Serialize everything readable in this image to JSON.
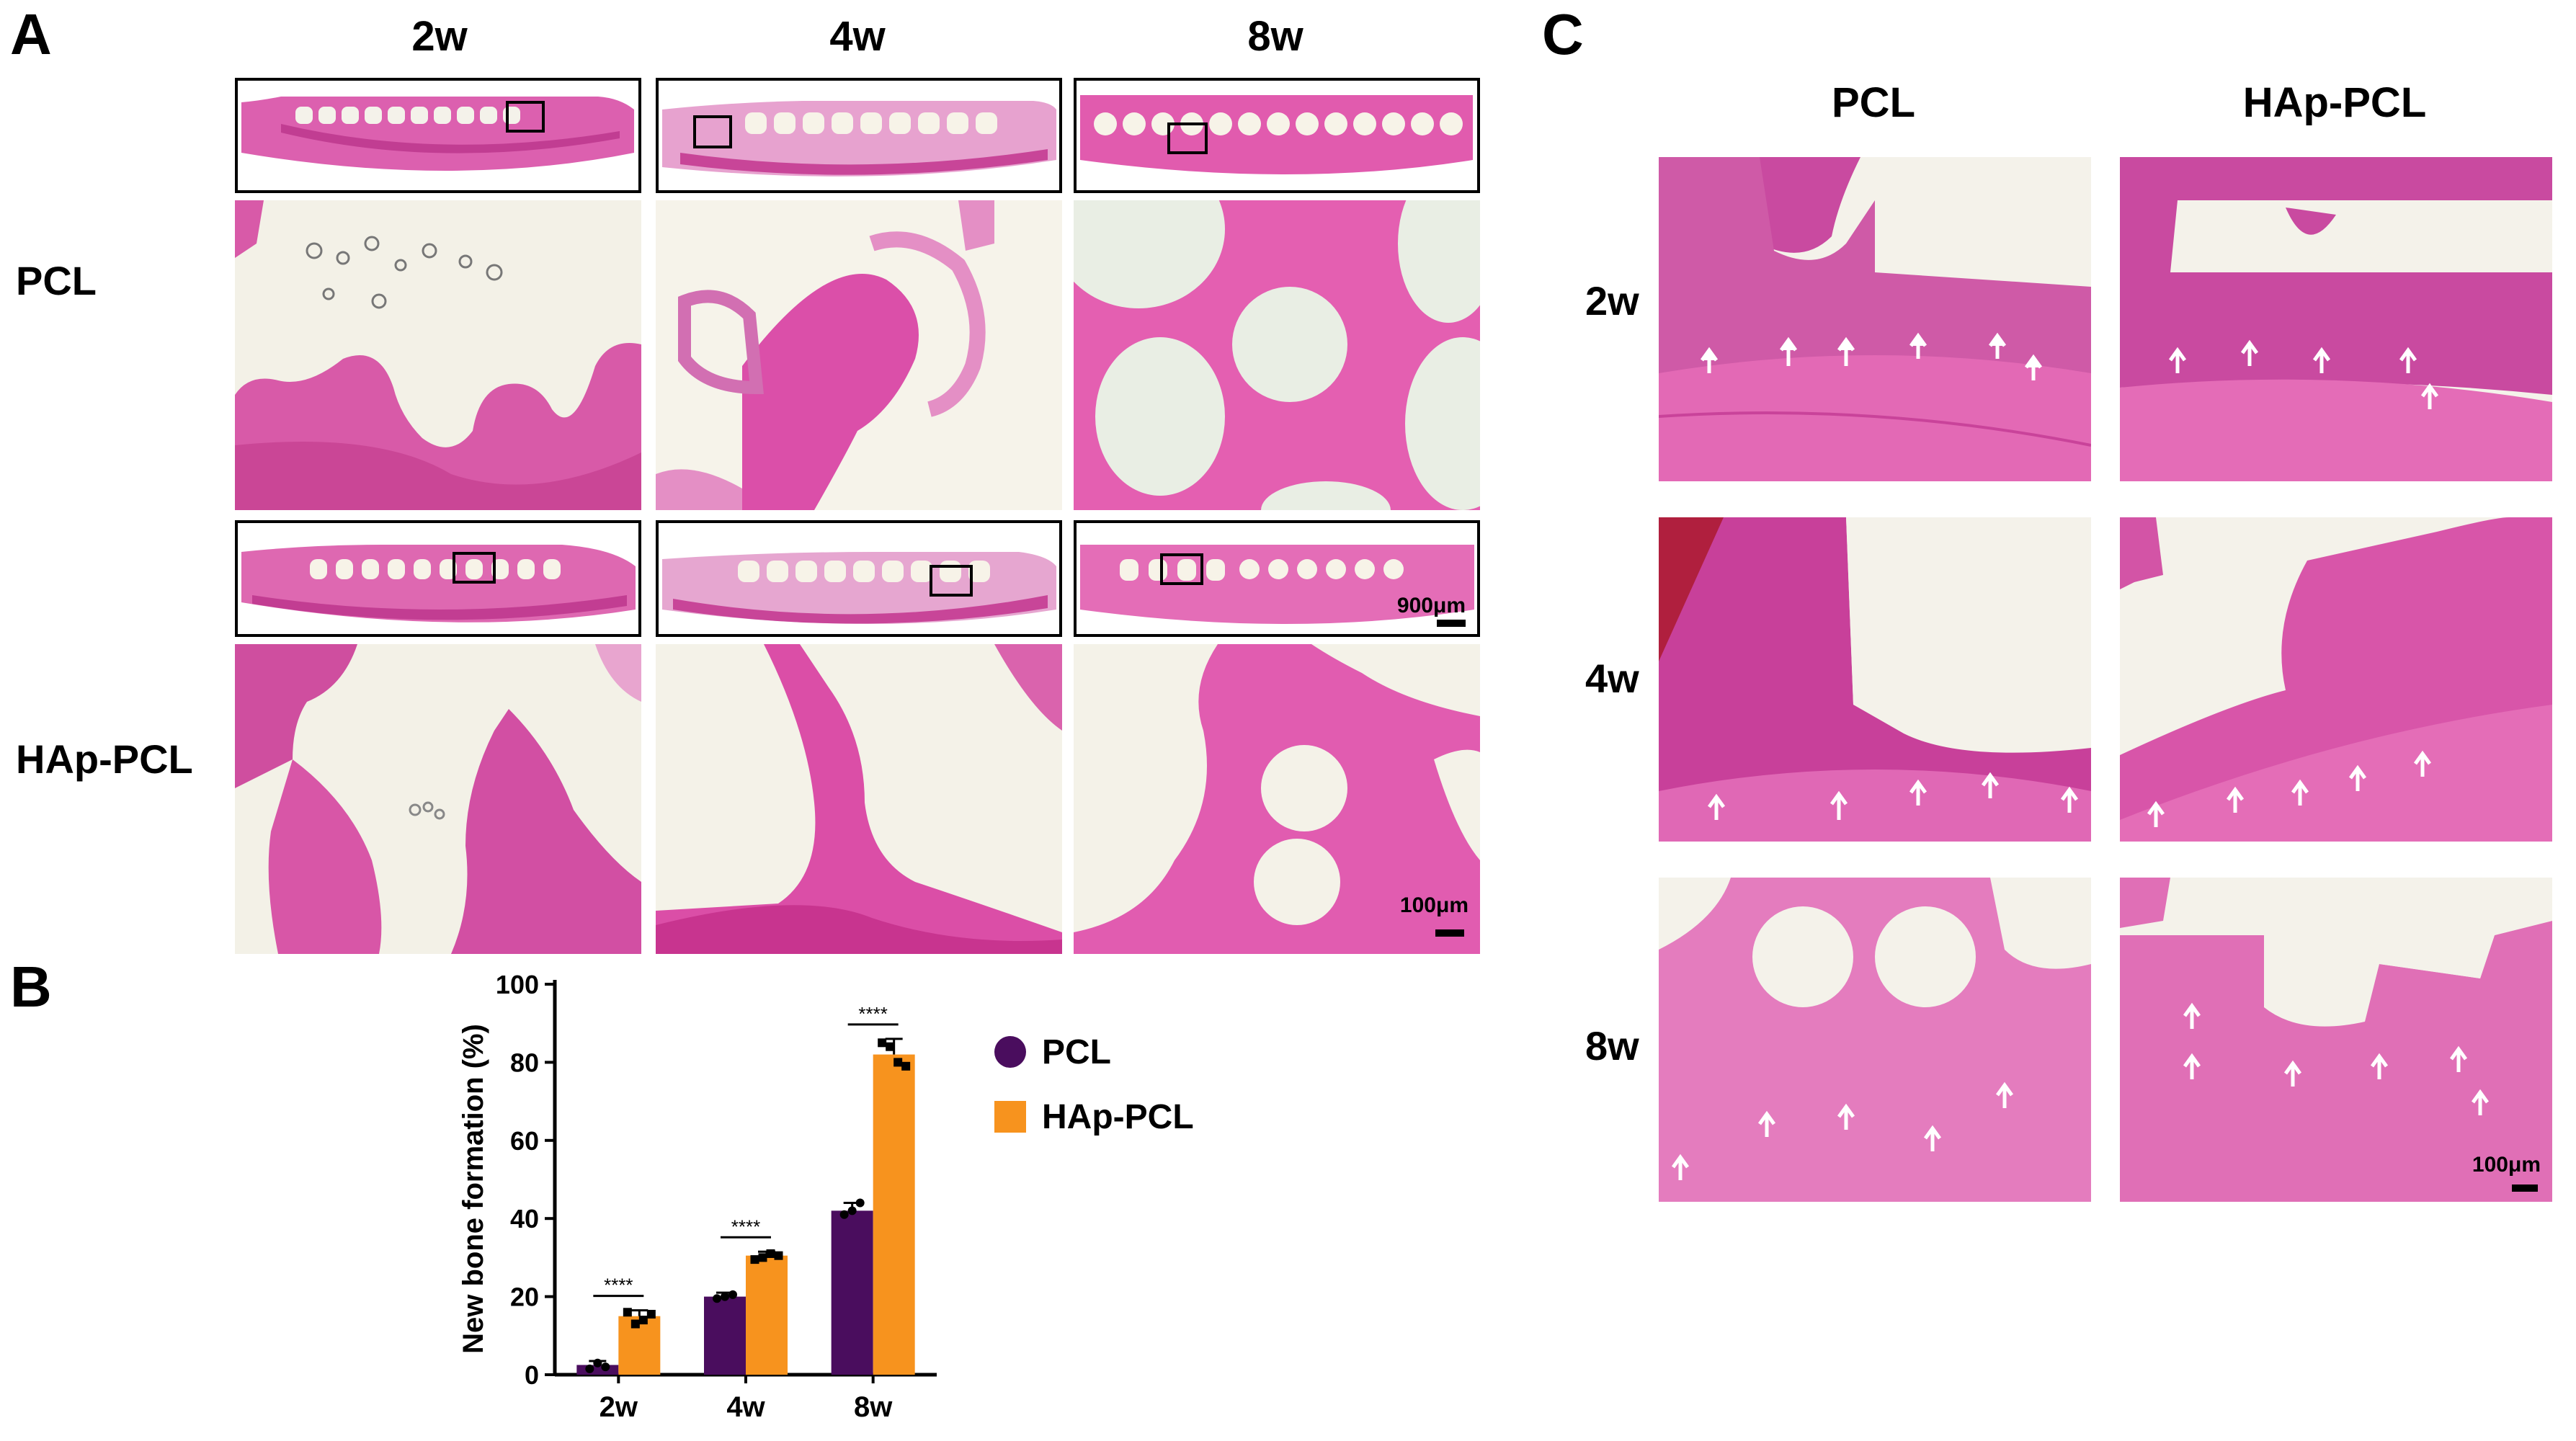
{
  "panel_a": {
    "letter": "A",
    "columns": [
      "2w",
      "4w",
      "8w"
    ],
    "rows": [
      "PCL",
      "HAp-PCL"
    ],
    "scale_overview": "900μm",
    "scale_detail": "100μm"
  },
  "panel_b": {
    "letter": "B",
    "legend": [
      "PCL",
      "HAp-PCL"
    ],
    "significance": "****"
  },
  "panel_c": {
    "letter": "C",
    "columns": [
      "PCL",
      "HAp-PCL"
    ],
    "rows": [
      "2w",
      "4w",
      "8w"
    ],
    "scale": "100μm"
  },
  "colors": {
    "pcl": "#4a0d5e",
    "hap_pcl": "#f7931e",
    "tissue": "#d94fa8",
    "bone": "#e866b4",
    "background_tissue": "#f4f2ea"
  },
  "chart_data": {
    "type": "bar",
    "categories": [
      "2w",
      "4w",
      "8w"
    ],
    "series": [
      {
        "name": "PCL",
        "values": [
          2.5,
          20,
          42
        ],
        "errors": [
          1,
          1,
          2
        ]
      },
      {
        "name": "HAp-PCL",
        "values": [
          15,
          30.5,
          82
        ],
        "errors": [
          1.5,
          1,
          4
        ]
      }
    ],
    "points": [
      [
        [
          1.5,
          3,
          2
        ],
        [
          16,
          13,
          14,
          15.5
        ]
      ],
      [
        [
          19.5,
          20,
          20.5
        ],
        [
          29.5,
          30,
          31,
          30.5
        ]
      ],
      [
        [
          41,
          42,
          44
        ],
        [
          85,
          84,
          80,
          79
        ]
      ]
    ],
    "significance": [
      "****",
      "****",
      "****"
    ],
    "ylabel": "New bone formation (%)",
    "ylim": [
      0,
      100
    ],
    "yticks": [
      0,
      20,
      40,
      60,
      80,
      100
    ],
    "legend_position": "right",
    "grid": false
  }
}
